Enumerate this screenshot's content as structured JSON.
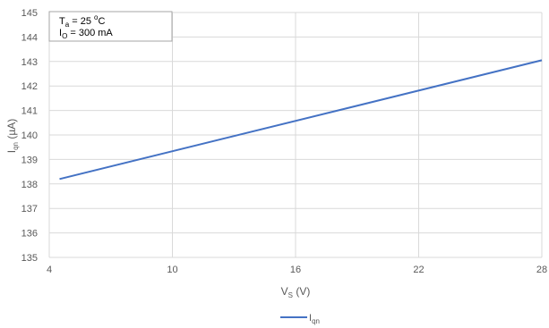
{
  "chart_data": {
    "type": "line",
    "xlabel": {
      "main": "V",
      "sub": "S",
      "rest": " (V)"
    },
    "ylabel": {
      "main": "I",
      "sub": "qn",
      "rest": " (µA)"
    },
    "xlim": [
      4,
      28
    ],
    "ylim": [
      135,
      145
    ],
    "xticks": [
      4,
      10,
      16,
      22,
      28
    ],
    "yticks": [
      135,
      136,
      137,
      138,
      139,
      140,
      141,
      142,
      143,
      144,
      145
    ],
    "grid": true,
    "legend_position": "bottom",
    "series": [
      {
        "name": {
          "main": "I",
          "sub": "qn"
        },
        "color": "#4472c4",
        "x": [
          4.5,
          28
        ],
        "y": [
          138.2,
          143.05
        ]
      }
    ],
    "annotation": {
      "line1": {
        "main": "T",
        "sub": "a",
        "rest": " = 25 ",
        "sup": "o",
        "rest2": "C"
      },
      "line2": {
        "main": "I",
        "sub": "O",
        "rest": " = 300 mA"
      }
    }
  }
}
